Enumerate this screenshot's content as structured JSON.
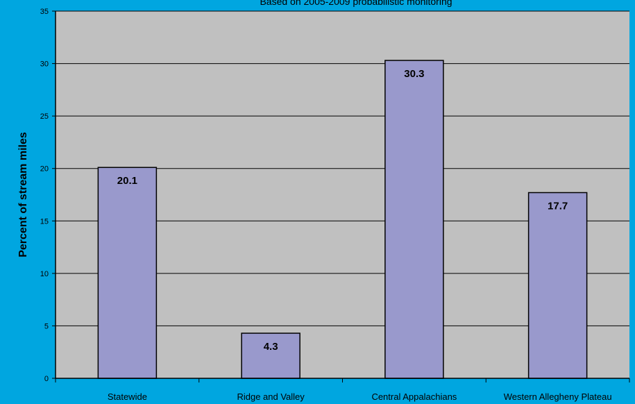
{
  "chart_data": {
    "type": "bar",
    "subtitle": "Based on 2005-2009 probabilistic monitoring",
    "ylabel": "Percent of stream miles",
    "xlabel": "",
    "categories": [
      "Statewide",
      "Ridge and Valley",
      "Central Appalachians",
      "Western Allegheny Plateau"
    ],
    "values": [
      20.1,
      4.3,
      30.3,
      17.7
    ],
    "data_labels": [
      "20.1",
      "4.3",
      "30.3",
      "17.7"
    ],
    "ylim": [
      0,
      35
    ],
    "yticks": [
      0,
      5,
      10,
      15,
      20,
      25,
      30,
      35
    ],
    "grid": true,
    "legend": "none",
    "colors": {
      "background": "#00a6e0",
      "plot_area": "#c0c0c0",
      "bar_fill": "#9999cc",
      "bar_stroke": "#000000",
      "gridline": "#000000"
    }
  }
}
